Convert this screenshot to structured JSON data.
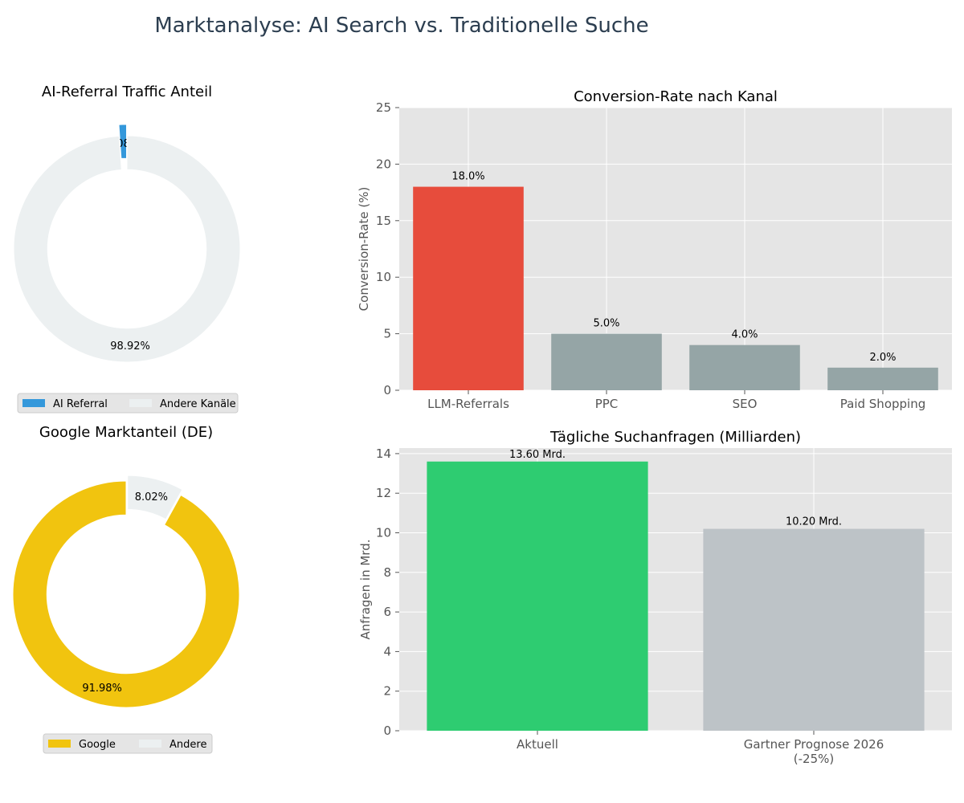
{
  "figure": {
    "title": "Marktanalyse: AI Search vs. Traditionelle Suche"
  },
  "colors": {
    "ai_blue": "#3498db",
    "light_gray": "#ecf0f1",
    "red": "#e74c3c",
    "gray": "#95a5a6",
    "green": "#2ecc71",
    "silver": "#bdc3c7",
    "yellow": "#f1c40f",
    "axes_bg": "#e5e5e5",
    "title_color": "#2c3e50"
  },
  "chart_data": [
    {
      "id": "ai_referral",
      "type": "pie",
      "donut": true,
      "title": "AI-Referral Traffic Anteil",
      "labels": [
        "AI Referral",
        "Andere Kanäle"
      ],
      "values": [
        1.08,
        98.92
      ],
      "value_labels": [
        "1.08%",
        "98.92%"
      ],
      "explode": [
        0.1,
        0
      ],
      "colors": [
        "#3498db",
        "#ecf0f1"
      ],
      "legend": "bottom-center"
    },
    {
      "id": "conversion",
      "type": "bar",
      "title": "Conversion-Rate nach Kanal",
      "categories": [
        "LLM-Referrals",
        "PPC",
        "SEO",
        "Paid Shopping"
      ],
      "values": [
        18.0,
        5.0,
        4.0,
        2.0
      ],
      "value_labels": [
        "18.0%",
        "5.0%",
        "4.0%",
        "2.0%"
      ],
      "colors": [
        "#e74c3c",
        "#95a5a6",
        "#95a5a6",
        "#95a5a6"
      ],
      "xlabel": "",
      "ylabel": "Conversion-Rate (%)",
      "ylim": [
        0,
        25
      ],
      "yticks": [
        0,
        5,
        10,
        15,
        20,
        25
      ],
      "grid": true
    },
    {
      "id": "google_share",
      "type": "pie",
      "donut": true,
      "title": "Google Marktanteil (DE)",
      "labels": [
        "Google",
        "Andere"
      ],
      "values": [
        91.98,
        8.02
      ],
      "value_labels": [
        "91.98%",
        "8.02%"
      ],
      "explode": [
        0,
        0.05
      ],
      "colors": [
        "#f1c40f",
        "#ecf0f1"
      ],
      "legend": "bottom-center"
    },
    {
      "id": "daily_queries",
      "type": "bar",
      "title": "Tägliche Suchanfragen (Milliarden)",
      "categories": [
        [
          "Aktuell"
        ],
        [
          "Gartner Prognose 2026",
          "(-25%)"
        ]
      ],
      "values": [
        13.6,
        10.2
      ],
      "value_labels": [
        "13.60 Mrd.",
        "10.20 Mrd."
      ],
      "colors": [
        "#2ecc71",
        "#bdc3c7"
      ],
      "xlabel": "",
      "ylabel": "Anfragen in Mrd.",
      "ylim": [
        0,
        14.28
      ],
      "yticks": [
        0,
        2,
        4,
        6,
        8,
        10,
        12,
        14
      ],
      "grid": true
    }
  ]
}
